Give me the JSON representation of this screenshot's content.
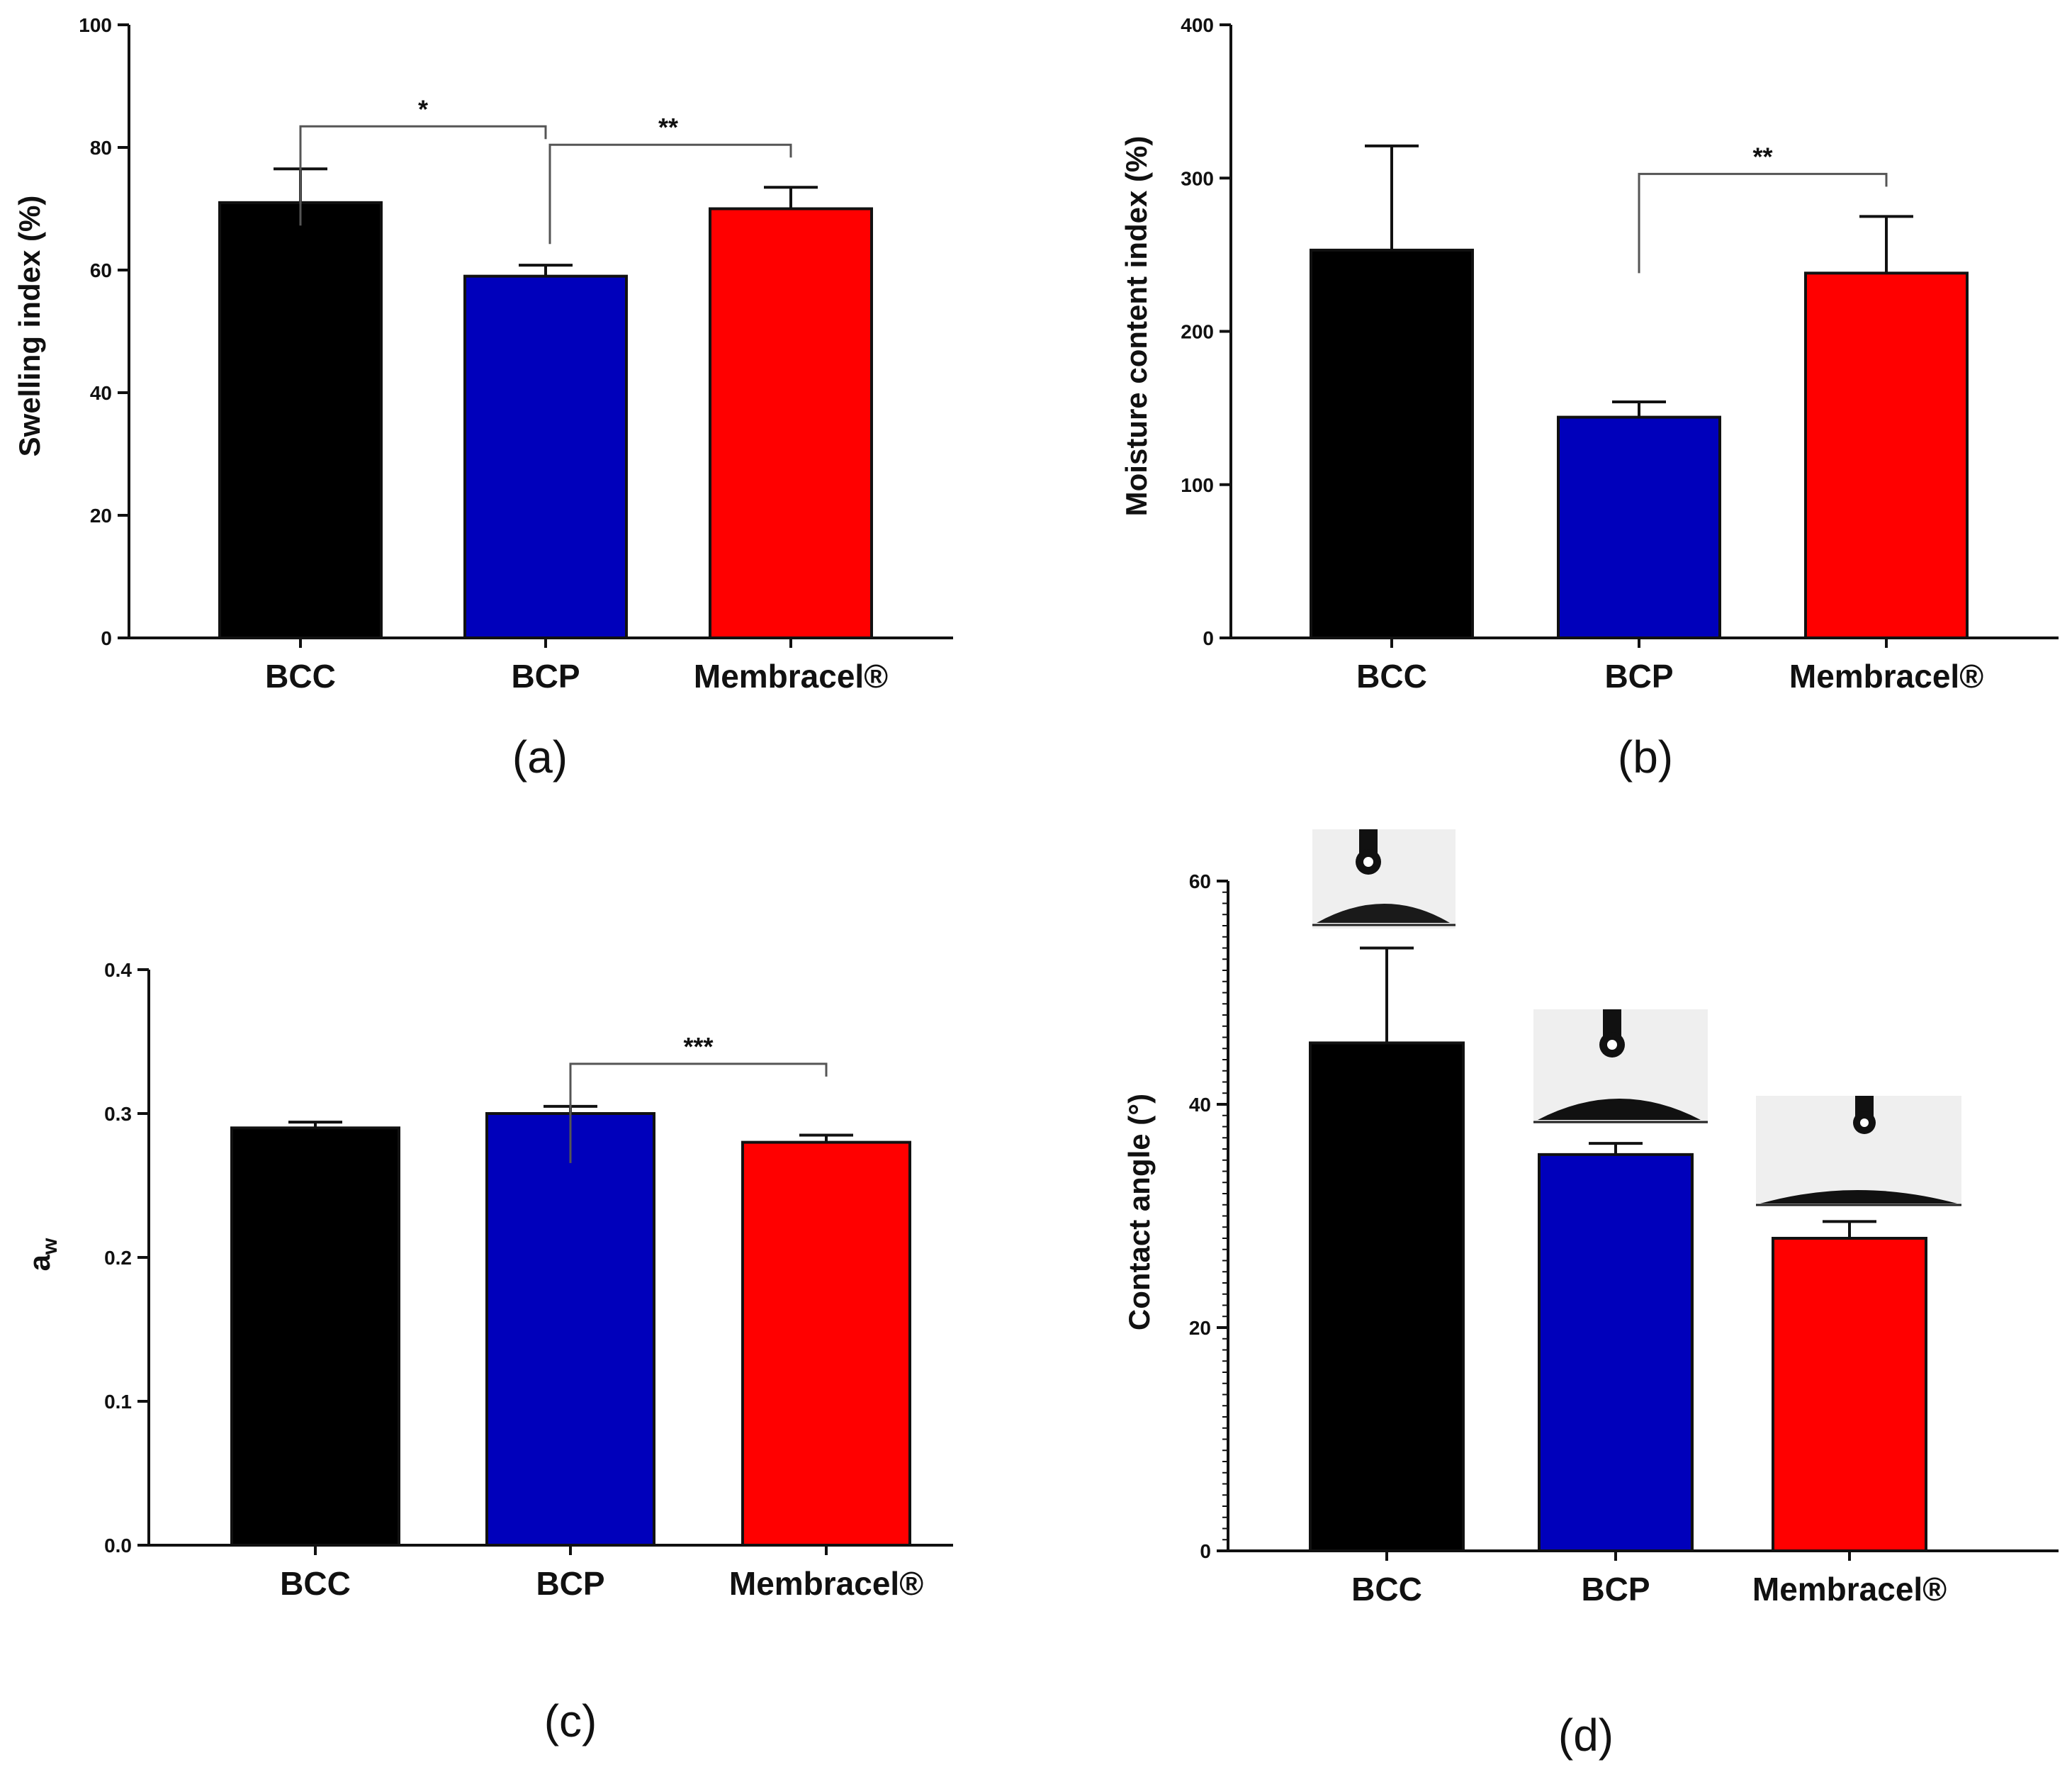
{
  "chart_data": [
    {
      "type": "bar",
      "panel_label": "(a)",
      "categories": [
        "BCC",
        "BCP",
        "Membracel®"
      ],
      "values": [
        71,
        59,
        70
      ],
      "errors": [
        5.5,
        1.8,
        3.5
      ],
      "colors": [
        "#000000",
        "#0000bb",
        "#ff0000"
      ],
      "ylabel": "Swelling index (%)",
      "ylim": [
        0,
        100
      ],
      "yticks": [
        "0",
        "20",
        "40",
        "60",
        "80",
        "100"
      ],
      "significance": [
        {
          "from": 0,
          "to": 1,
          "label": "*"
        },
        {
          "from": 1,
          "to": 2,
          "label": "**"
        }
      ]
    },
    {
      "type": "bar",
      "panel_label": "(b)",
      "categories": [
        "BCC",
        "BCP",
        "Membracel®"
      ],
      "values": [
        253,
        144,
        238
      ],
      "errors": [
        68,
        10,
        37
      ],
      "colors": [
        "#000000",
        "#0000bb",
        "#ff0000"
      ],
      "ylabel": "Moisture content index (%)",
      "ylim": [
        0,
        400
      ],
      "yticks": [
        "0",
        "100",
        "200",
        "300",
        "400"
      ],
      "significance": [
        {
          "from": 1,
          "to": 2,
          "label": "**"
        }
      ]
    },
    {
      "type": "bar",
      "panel_label": "(c)",
      "categories": [
        "BCC",
        "BCP",
        "Membracel®"
      ],
      "values": [
        0.29,
        0.3,
        0.28
      ],
      "errors": [
        0.004,
        0.005,
        0.005
      ],
      "colors": [
        "#000000",
        "#0000bb",
        "#ff0000"
      ],
      "ylabel_main": "a",
      "ylabel_sub": "w",
      "ylim": [
        0,
        0.4
      ],
      "yticks": [
        "0.0",
        "0.1",
        "0.2",
        "0.3",
        "0.4"
      ],
      "significance": [
        {
          "from": 1,
          "to": 2,
          "label": "***"
        }
      ]
    },
    {
      "type": "bar",
      "panel_label": "(d)",
      "categories": [
        "BCC",
        "BCP",
        "Membracel®"
      ],
      "values": [
        45.5,
        35.5,
        28
      ],
      "errors": [
        8.5,
        1,
        1.5
      ],
      "colors": [
        "#000000",
        "#0000bb",
        "#ff0000"
      ],
      "ylabel": "Contact angle (°)",
      "ylim": [
        0,
        60
      ],
      "yticks": [
        "0",
        "20",
        "40",
        "60"
      ],
      "significance": []
    }
  ]
}
